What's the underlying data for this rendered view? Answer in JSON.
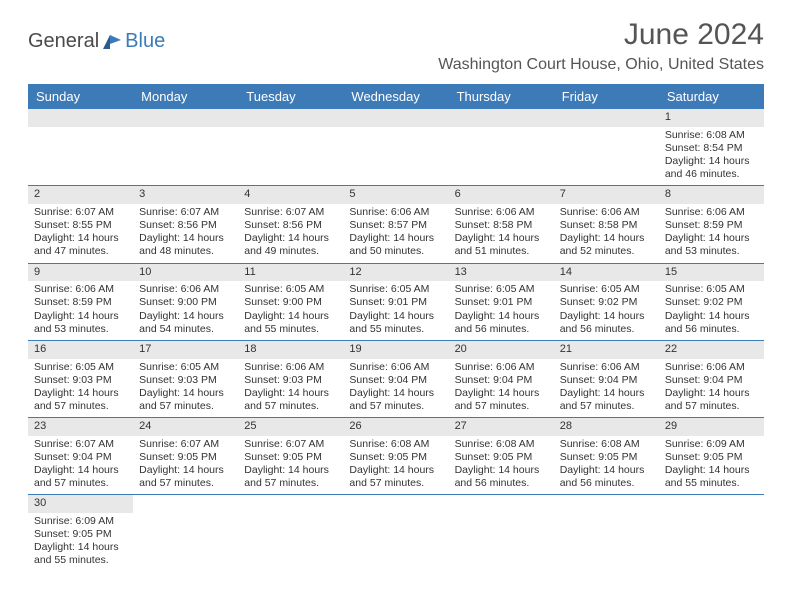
{
  "logo": {
    "general": "General",
    "blue": "Blue"
  },
  "title": "June 2024",
  "location": "Washington Court House, Ohio, United States",
  "day_headers": [
    "Sunday",
    "Monday",
    "Tuesday",
    "Wednesday",
    "Thursday",
    "Friday",
    "Saturday"
  ],
  "colors": {
    "header_bg": "#3d7ab8",
    "header_text": "#ffffff",
    "daynum_bg": "#e8e8e8",
    "cell_border": "#3d7ab8",
    "body_text": "#333333",
    "title_text": "#555555",
    "logo_gray": "#4a4a4a",
    "logo_blue": "#3d7ab8",
    "background": "#ffffff"
  },
  "weeks": [
    [
      null,
      null,
      null,
      null,
      null,
      null,
      {
        "n": "1",
        "sunrise": "Sunrise: 6:08 AM",
        "sunset": "Sunset: 8:54 PM",
        "d1": "Daylight: 14 hours",
        "d2": "and 46 minutes."
      }
    ],
    [
      {
        "n": "2",
        "sunrise": "Sunrise: 6:07 AM",
        "sunset": "Sunset: 8:55 PM",
        "d1": "Daylight: 14 hours",
        "d2": "and 47 minutes."
      },
      {
        "n": "3",
        "sunrise": "Sunrise: 6:07 AM",
        "sunset": "Sunset: 8:56 PM",
        "d1": "Daylight: 14 hours",
        "d2": "and 48 minutes."
      },
      {
        "n": "4",
        "sunrise": "Sunrise: 6:07 AM",
        "sunset": "Sunset: 8:56 PM",
        "d1": "Daylight: 14 hours",
        "d2": "and 49 minutes."
      },
      {
        "n": "5",
        "sunrise": "Sunrise: 6:06 AM",
        "sunset": "Sunset: 8:57 PM",
        "d1": "Daylight: 14 hours",
        "d2": "and 50 minutes."
      },
      {
        "n": "6",
        "sunrise": "Sunrise: 6:06 AM",
        "sunset": "Sunset: 8:58 PM",
        "d1": "Daylight: 14 hours",
        "d2": "and 51 minutes."
      },
      {
        "n": "7",
        "sunrise": "Sunrise: 6:06 AM",
        "sunset": "Sunset: 8:58 PM",
        "d1": "Daylight: 14 hours",
        "d2": "and 52 minutes."
      },
      {
        "n": "8",
        "sunrise": "Sunrise: 6:06 AM",
        "sunset": "Sunset: 8:59 PM",
        "d1": "Daylight: 14 hours",
        "d2": "and 53 minutes."
      }
    ],
    [
      {
        "n": "9",
        "sunrise": "Sunrise: 6:06 AM",
        "sunset": "Sunset: 8:59 PM",
        "d1": "Daylight: 14 hours",
        "d2": "and 53 minutes."
      },
      {
        "n": "10",
        "sunrise": "Sunrise: 6:06 AM",
        "sunset": "Sunset: 9:00 PM",
        "d1": "Daylight: 14 hours",
        "d2": "and 54 minutes."
      },
      {
        "n": "11",
        "sunrise": "Sunrise: 6:05 AM",
        "sunset": "Sunset: 9:00 PM",
        "d1": "Daylight: 14 hours",
        "d2": "and 55 minutes."
      },
      {
        "n": "12",
        "sunrise": "Sunrise: 6:05 AM",
        "sunset": "Sunset: 9:01 PM",
        "d1": "Daylight: 14 hours",
        "d2": "and 55 minutes."
      },
      {
        "n": "13",
        "sunrise": "Sunrise: 6:05 AM",
        "sunset": "Sunset: 9:01 PM",
        "d1": "Daylight: 14 hours",
        "d2": "and 56 minutes."
      },
      {
        "n": "14",
        "sunrise": "Sunrise: 6:05 AM",
        "sunset": "Sunset: 9:02 PM",
        "d1": "Daylight: 14 hours",
        "d2": "and 56 minutes."
      },
      {
        "n": "15",
        "sunrise": "Sunrise: 6:05 AM",
        "sunset": "Sunset: 9:02 PM",
        "d1": "Daylight: 14 hours",
        "d2": "and 56 minutes."
      }
    ],
    [
      {
        "n": "16",
        "sunrise": "Sunrise: 6:05 AM",
        "sunset": "Sunset: 9:03 PM",
        "d1": "Daylight: 14 hours",
        "d2": "and 57 minutes."
      },
      {
        "n": "17",
        "sunrise": "Sunrise: 6:05 AM",
        "sunset": "Sunset: 9:03 PM",
        "d1": "Daylight: 14 hours",
        "d2": "and 57 minutes."
      },
      {
        "n": "18",
        "sunrise": "Sunrise: 6:06 AM",
        "sunset": "Sunset: 9:03 PM",
        "d1": "Daylight: 14 hours",
        "d2": "and 57 minutes."
      },
      {
        "n": "19",
        "sunrise": "Sunrise: 6:06 AM",
        "sunset": "Sunset: 9:04 PM",
        "d1": "Daylight: 14 hours",
        "d2": "and 57 minutes."
      },
      {
        "n": "20",
        "sunrise": "Sunrise: 6:06 AM",
        "sunset": "Sunset: 9:04 PM",
        "d1": "Daylight: 14 hours",
        "d2": "and 57 minutes."
      },
      {
        "n": "21",
        "sunrise": "Sunrise: 6:06 AM",
        "sunset": "Sunset: 9:04 PM",
        "d1": "Daylight: 14 hours",
        "d2": "and 57 minutes."
      },
      {
        "n": "22",
        "sunrise": "Sunrise: 6:06 AM",
        "sunset": "Sunset: 9:04 PM",
        "d1": "Daylight: 14 hours",
        "d2": "and 57 minutes."
      }
    ],
    [
      {
        "n": "23",
        "sunrise": "Sunrise: 6:07 AM",
        "sunset": "Sunset: 9:04 PM",
        "d1": "Daylight: 14 hours",
        "d2": "and 57 minutes."
      },
      {
        "n": "24",
        "sunrise": "Sunrise: 6:07 AM",
        "sunset": "Sunset: 9:05 PM",
        "d1": "Daylight: 14 hours",
        "d2": "and 57 minutes."
      },
      {
        "n": "25",
        "sunrise": "Sunrise: 6:07 AM",
        "sunset": "Sunset: 9:05 PM",
        "d1": "Daylight: 14 hours",
        "d2": "and 57 minutes."
      },
      {
        "n": "26",
        "sunrise": "Sunrise: 6:08 AM",
        "sunset": "Sunset: 9:05 PM",
        "d1": "Daylight: 14 hours",
        "d2": "and 57 minutes."
      },
      {
        "n": "27",
        "sunrise": "Sunrise: 6:08 AM",
        "sunset": "Sunset: 9:05 PM",
        "d1": "Daylight: 14 hours",
        "d2": "and 56 minutes."
      },
      {
        "n": "28",
        "sunrise": "Sunrise: 6:08 AM",
        "sunset": "Sunset: 9:05 PM",
        "d1": "Daylight: 14 hours",
        "d2": "and 56 minutes."
      },
      {
        "n": "29",
        "sunrise": "Sunrise: 6:09 AM",
        "sunset": "Sunset: 9:05 PM",
        "d1": "Daylight: 14 hours",
        "d2": "and 55 minutes."
      }
    ],
    [
      {
        "n": "30",
        "sunrise": "Sunrise: 6:09 AM",
        "sunset": "Sunset: 9:05 PM",
        "d1": "Daylight: 14 hours",
        "d2": "and 55 minutes."
      },
      null,
      null,
      null,
      null,
      null,
      null
    ]
  ]
}
